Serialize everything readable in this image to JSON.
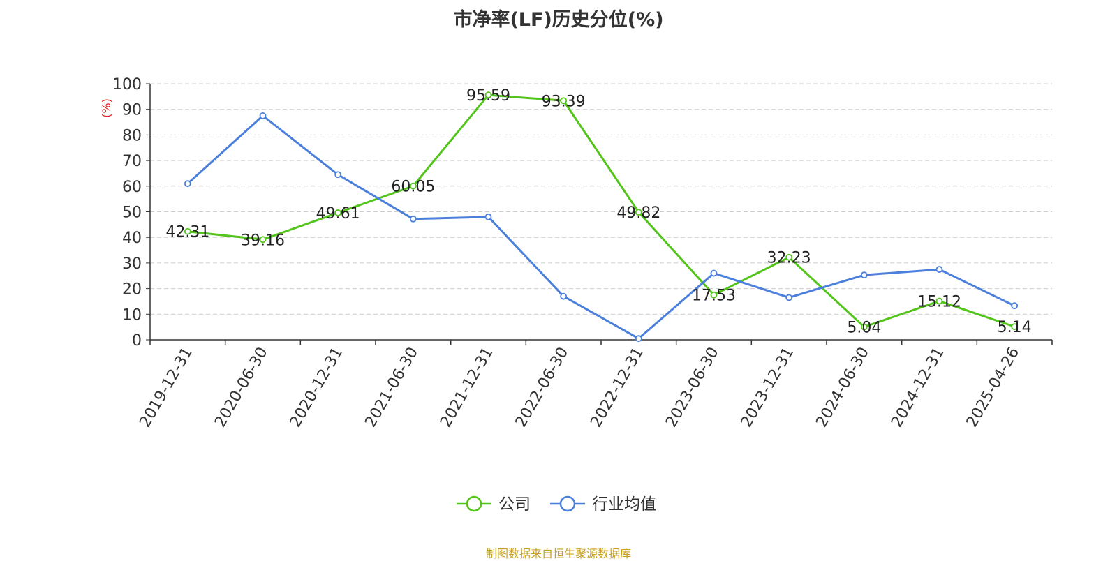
{
  "title": "市净率(LF)历史分位(%)",
  "source": "制图数据来自恒生聚源数据库",
  "chart_data": {
    "type": "line",
    "title": "市净率(LF)历史分位(%)",
    "xlabel": "",
    "ylabel": "(%)",
    "ylim": [
      0,
      100
    ],
    "yticks": [
      0,
      10,
      20,
      30,
      40,
      50,
      60,
      70,
      80,
      90,
      100
    ],
    "grid": true,
    "legend_position": "bottom",
    "categories": [
      "2019-12-31",
      "2020-06-30",
      "2020-12-31",
      "2021-06-30",
      "2021-12-31",
      "2022-06-30",
      "2022-12-31",
      "2023-06-30",
      "2023-12-31",
      "2024-06-30",
      "2024-12-31",
      "2025-04-26"
    ],
    "series": [
      {
        "name": "公司",
        "color": "#52c41a",
        "show_labels": true,
        "values": [
          42.31,
          39.16,
          49.61,
          60.05,
          95.59,
          93.39,
          49.82,
          17.53,
          32.23,
          5.04,
          15.12,
          5.14
        ],
        "labels": [
          "42.31",
          "39.16",
          "49.61",
          "60.05",
          "95.59",
          "93.39",
          "49.82",
          "17.53",
          "32.23",
          "5.04",
          "15.12",
          "5.14"
        ]
      },
      {
        "name": "行业均值",
        "color": "#4a7fdc",
        "show_labels": false,
        "values": [
          61,
          87.5,
          64.5,
          47.2,
          48,
          17,
          0.5,
          26,
          16.5,
          25.3,
          27.5,
          13.3
        ]
      }
    ]
  }
}
